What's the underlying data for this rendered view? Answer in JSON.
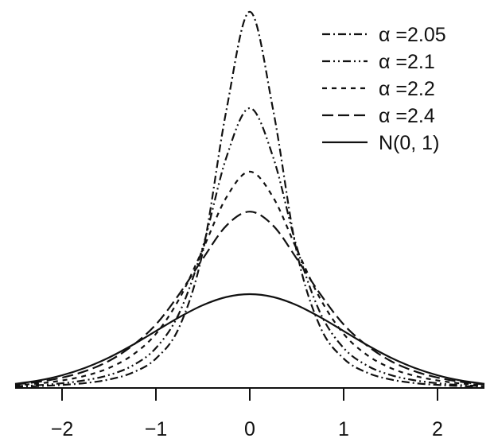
{
  "chart_data": {
    "type": "line",
    "title": "",
    "xlabel": "",
    "ylabel": "",
    "xlim": [
      -2.5,
      2.5
    ],
    "ylim": [
      0,
      1.65
    ],
    "xticks": [
      -2,
      -1,
      0,
      1,
      2
    ],
    "xtick_labels": [
      "−2",
      "−1",
      "0",
      "1",
      "2"
    ],
    "yaxis_shown": false,
    "grid": false,
    "legend": "top-right",
    "x": [
      -2.5,
      -2.25,
      -2.0,
      -1.75,
      -1.5,
      -1.25,
      -1.0,
      -0.75,
      -0.5,
      -0.25,
      0.0,
      0.25,
      0.5,
      0.75,
      1.0,
      1.25,
      1.5,
      1.75,
      2.0,
      2.25,
      2.5
    ],
    "series": [
      {
        "name": "α =2.05",
        "dash": "dash-dot",
        "values": [
          0.005,
          0.008,
          0.013,
          0.021,
          0.036,
          0.065,
          0.125,
          0.26,
          0.58,
          1.18,
          1.6,
          1.18,
          0.58,
          0.26,
          0.125,
          0.065,
          0.036,
          0.021,
          0.013,
          0.008,
          0.005
        ]
      },
      {
        "name": "α =2.1",
        "dash": "dash-dot-dot",
        "values": [
          0.008,
          0.012,
          0.02,
          0.033,
          0.055,
          0.095,
          0.17,
          0.32,
          0.6,
          0.98,
          1.19,
          0.98,
          0.6,
          0.32,
          0.17,
          0.095,
          0.055,
          0.033,
          0.02,
          0.012,
          0.008
        ]
      },
      {
        "name": "α =2.2",
        "dash": "short-dash",
        "values": [
          0.012,
          0.019,
          0.032,
          0.052,
          0.085,
          0.14,
          0.23,
          0.38,
          0.59,
          0.81,
          0.92,
          0.81,
          0.59,
          0.38,
          0.23,
          0.14,
          0.085,
          0.052,
          0.032,
          0.019,
          0.012
        ]
      },
      {
        "name": "α =2.4",
        "dash": "long-dash",
        "values": [
          0.015,
          0.026,
          0.044,
          0.072,
          0.115,
          0.18,
          0.27,
          0.4,
          0.55,
          0.69,
          0.75,
          0.69,
          0.55,
          0.4,
          0.27,
          0.18,
          0.115,
          0.072,
          0.044,
          0.026,
          0.015
        ]
      },
      {
        "name": "N(0, 1)",
        "dash": "solid",
        "values": [
          0.0175,
          0.0317,
          0.054,
          0.0863,
          0.1295,
          0.1826,
          0.242,
          0.3011,
          0.3521,
          0.3867,
          0.3989,
          0.3867,
          0.3521,
          0.3011,
          0.242,
          0.1826,
          0.1295,
          0.0863,
          0.054,
          0.0317,
          0.0175
        ]
      }
    ]
  }
}
